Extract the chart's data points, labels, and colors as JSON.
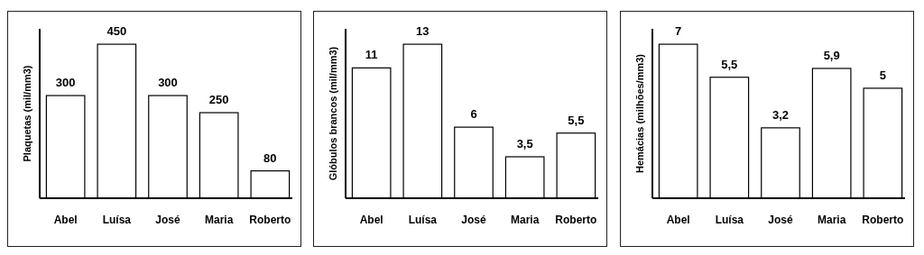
{
  "chart_data": [
    {
      "type": "bar",
      "ylabel": "Plaquetas (mil/mm3)",
      "categories": [
        "Abel",
        "Luísa",
        "José",
        "Maria",
        "Roberto"
      ],
      "values": [
        300,
        450,
        300,
        250,
        80
      ],
      "value_labels": [
        "300",
        "450",
        "300",
        "250",
        "80"
      ],
      "color": "#ffffff"
    },
    {
      "type": "bar",
      "ylabel": "Glóbulos brancos (mil/mm3)",
      "categories": [
        "Abel",
        "Luísa",
        "José",
        "Maria",
        "Roberto"
      ],
      "values": [
        11,
        13,
        6,
        3.5,
        5.5
      ],
      "value_labels": [
        "11",
        "13",
        "6",
        "3,5",
        "5,5"
      ],
      "color": "#ffffff"
    },
    {
      "type": "bar",
      "ylabel": "Hemácias (milhões/mm3)",
      "categories": [
        "Abel",
        "Luísa",
        "José",
        "Maria",
        "Roberto"
      ],
      "values": [
        7,
        5.5,
        3.2,
        5.9,
        5
      ],
      "value_labels": [
        "7",
        "5,5",
        "3,2",
        "5,9",
        "5"
      ],
      "color": "#ffffff"
    }
  ]
}
